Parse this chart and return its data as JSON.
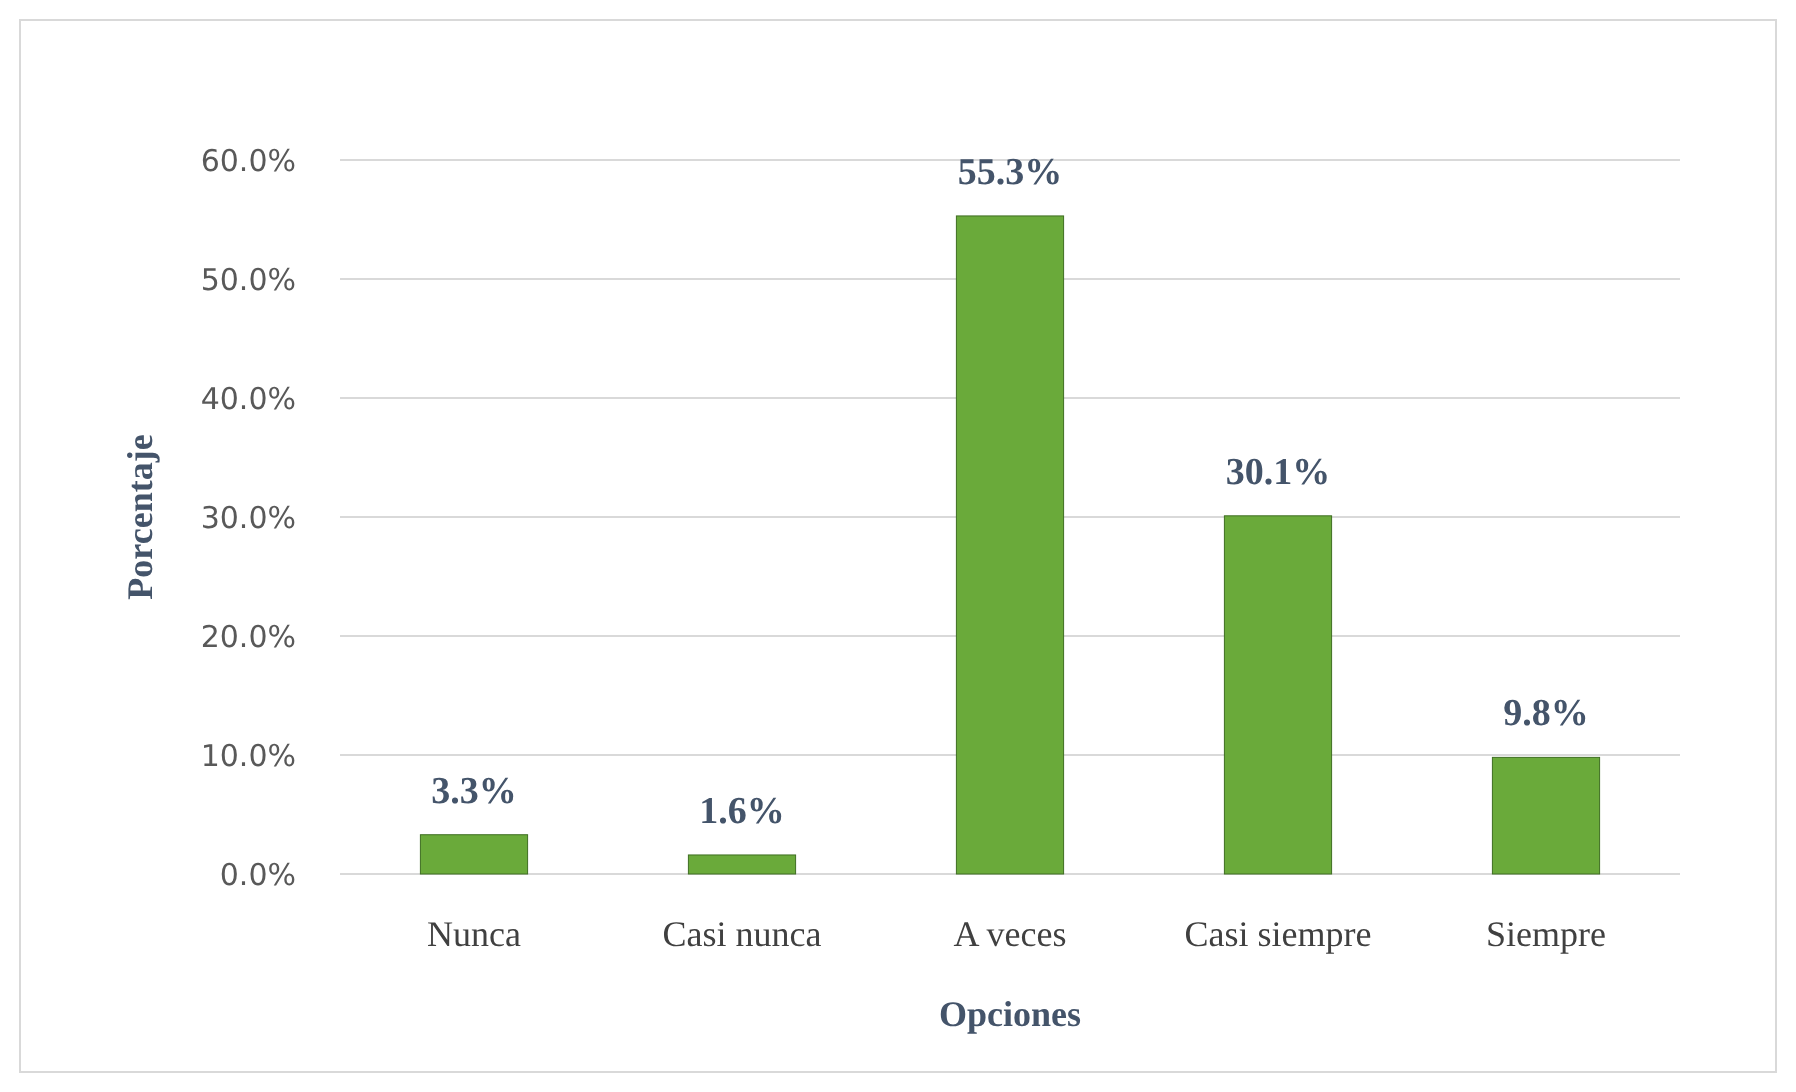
{
  "chart_data": {
    "type": "bar",
    "xlabel": "Opciones",
    "ylabel": "Porcentaje",
    "categories": [
      "Nunca",
      "Casi nunca",
      "A veces",
      "Casi siempre",
      "Siempre"
    ],
    "values": [
      3.3,
      1.6,
      55.3,
      30.1,
      9.8
    ],
    "value_labels": [
      "3.3%",
      "1.6%",
      "55.3%",
      "30.1%",
      "9.8%"
    ],
    "color": "#6aaa3a",
    "ylim": [
      0,
      60
    ],
    "yticks": [
      {
        "value": 0,
        "label": "0.0%"
      },
      {
        "value": 10,
        "label": "10.0%"
      },
      {
        "value": 20,
        "label": "20.0%"
      },
      {
        "value": 30,
        "label": "30.0%"
      },
      {
        "value": 40,
        "label": "40.0%"
      },
      {
        "value": 50,
        "label": "50.0%"
      },
      {
        "value": 60,
        "label": "60.0%"
      }
    ],
    "grid": "y"
  }
}
